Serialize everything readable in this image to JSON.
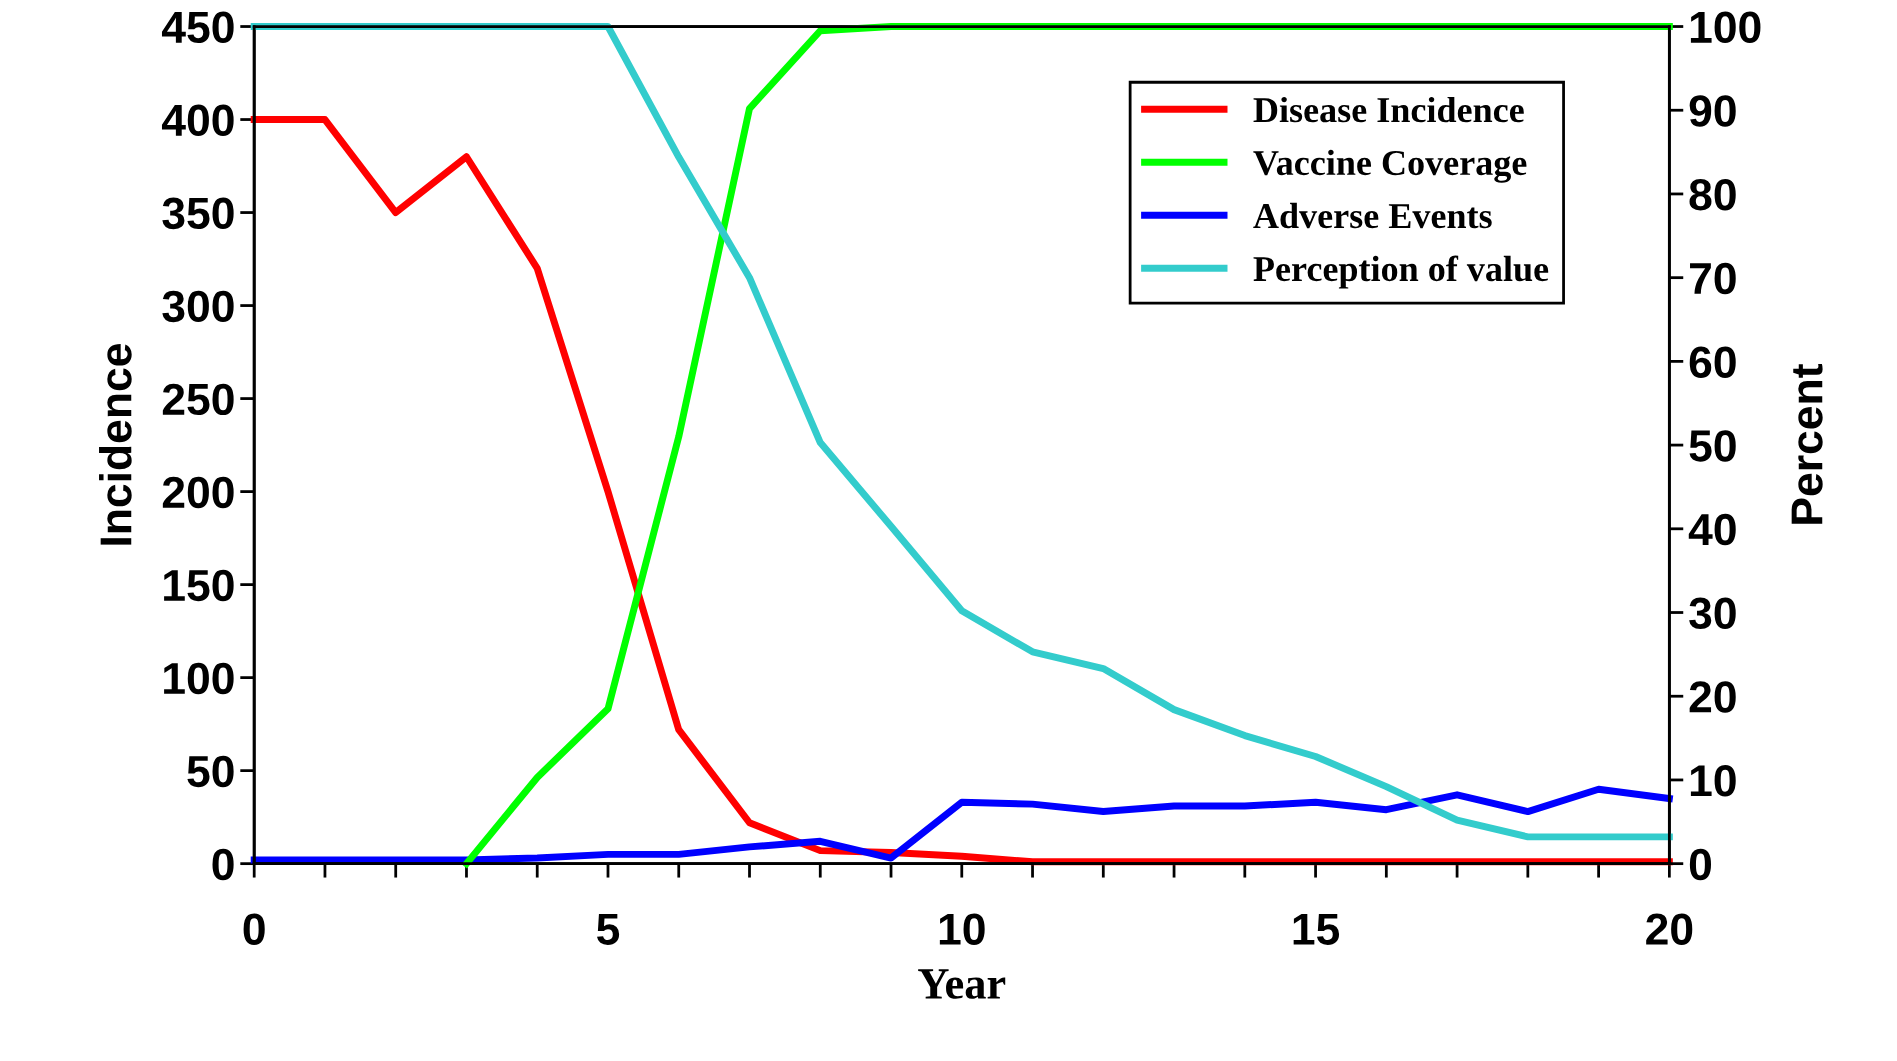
{
  "chart_data": {
    "type": "line",
    "xlabel": "Year",
    "ylabel": "Incidence",
    "y2label": "Percent",
    "x": [
      0,
      1,
      2,
      3,
      4,
      5,
      6,
      7,
      8,
      9,
      10,
      11,
      12,
      13,
      14,
      15,
      16,
      17,
      18,
      19,
      20
    ],
    "xlim": [
      0,
      20
    ],
    "xticks": [
      0,
      {
        "value": 1,
        "label": null
      },
      {
        "value": 2,
        "label": null
      },
      {
        "value": 3,
        "label": null
      },
      {
        "value": 4,
        "label": null
      },
      5,
      {
        "value": 6,
        "label": null
      },
      {
        "value": 7,
        "label": null
      },
      {
        "value": 8,
        "label": null
      },
      {
        "value": 9,
        "label": null
      },
      10,
      {
        "value": 11,
        "label": null
      },
      {
        "value": 12,
        "label": null
      },
      {
        "value": 13,
        "label": null
      },
      {
        "value": 14,
        "label": null
      },
      15,
      {
        "value": 16,
        "label": null
      },
      {
        "value": 17,
        "label": null
      },
      {
        "value": 18,
        "label": null
      },
      {
        "value": 19,
        "label": null
      },
      20
    ],
    "ylim": [
      0,
      450
    ],
    "yticks": [
      0,
      50,
      100,
      150,
      200,
      250,
      300,
      350,
      400,
      450
    ],
    "y2lim": [
      0,
      100
    ],
    "y2ticks": [
      0,
      10,
      20,
      30,
      40,
      50,
      60,
      70,
      80,
      90,
      100
    ],
    "legend": "top right",
    "grid": false,
    "marker": "none",
    "line_style": "solid",
    "series": [
      {
        "name": "Disease Incidence",
        "color": "#ff0000",
        "values": [
          400,
          400,
          350,
          380,
          320,
          200,
          72,
          22,
          7,
          6,
          4,
          1,
          1,
          1,
          1,
          1,
          1,
          1,
          1,
          1,
          1
        ]
      },
      {
        "name": "Vaccine Coverage",
        "color": "#00ff00",
        "axis": "y2",
        "values": [
          null,
          null,
          null,
          0,
          10.3,
          18.5,
          51,
          90.2,
          99.5,
          100,
          100,
          100,
          100,
          100,
          100,
          100,
          100,
          100,
          100,
          100,
          100
        ]
      },
      {
        "name": "Adverse Events",
        "color": "#0000ff",
        "values": [
          2,
          2,
          2,
          2,
          3,
          5,
          5,
          9,
          12,
          3,
          33,
          32,
          28,
          31,
          31,
          33,
          29,
          37,
          28,
          40,
          35
        ]
      },
      {
        "name": "Perception of value",
        "color": "#33cccc",
        "axis": "y2",
        "values": [
          100,
          100,
          100,
          100,
          100,
          100,
          84.4,
          70,
          50.3,
          40.3,
          30.2,
          25.3,
          23.3,
          18.4,
          15.3,
          12.8,
          9.2,
          5.2,
          3.2,
          3.2,
          3.2
        ]
      }
    ]
  }
}
